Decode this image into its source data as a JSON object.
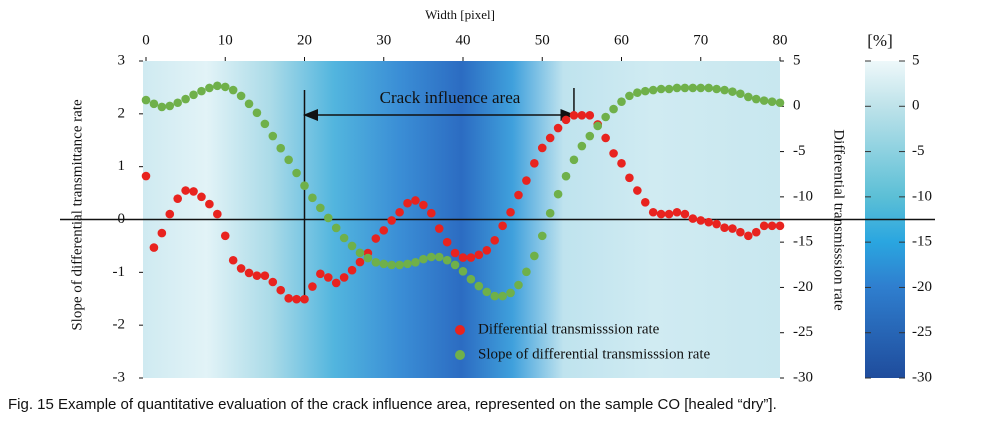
{
  "chart_data": {
    "type": "scatter",
    "x_label": "Width [pixel]",
    "y_label": "Slope of differential transmittance rate",
    "y2_label": "Differential transmisssion rate",
    "xlim": [
      0,
      80
    ],
    "xticks": [
      0,
      10,
      20,
      30,
      40,
      50,
      60,
      70,
      80
    ],
    "ylim": [
      -3,
      3
    ],
    "yticks": [
      -3,
      -2,
      -1,
      0,
      1,
      2,
      3
    ],
    "y2lim": [
      -30,
      5
    ],
    "y2ticks": [
      -30,
      -25,
      -20,
      -15,
      -10,
      -5,
      0,
      5
    ],
    "colorbar": {
      "label": "[%]",
      "lim": [
        -30,
        5
      ],
      "ticks": [
        -30,
        -25,
        -20,
        -15,
        -10,
        -5,
        0,
        5
      ]
    },
    "annotation": {
      "text": "Crack influence area",
      "span": [
        20,
        54
      ]
    },
    "x": [
      0,
      1,
      2,
      3,
      4,
      5,
      6,
      7,
      8,
      9,
      10,
      11,
      12,
      13,
      14,
      15,
      16,
      17,
      18,
      19,
      20,
      21,
      22,
      23,
      24,
      25,
      26,
      27,
      28,
      29,
      30,
      31,
      32,
      33,
      34,
      35,
      36,
      37,
      38,
      39,
      40,
      41,
      42,
      43,
      44,
      45,
      46,
      47,
      48,
      49,
      50,
      51,
      52,
      53,
      54,
      55,
      56,
      57,
      58,
      59,
      60,
      61,
      62,
      63,
      64,
      65,
      66,
      67,
      68,
      69,
      70,
      71,
      72,
      73,
      74,
      75,
      76,
      77,
      78,
      79,
      80
    ],
    "series": [
      {
        "name": "Differential transmisssion rate",
        "color": "#e8231f",
        "axis": "y2",
        "values": [
          -7.7,
          -15.6,
          -14.0,
          -11.9,
          -10.2,
          -9.3,
          -9.4,
          -10.0,
          -10.8,
          -11.9,
          -14.3,
          -17.0,
          -17.9,
          -18.4,
          -18.7,
          -18.7,
          -19.4,
          -20.3,
          -21.2,
          -21.3,
          -21.3,
          -19.9,
          -18.5,
          -18.9,
          -19.5,
          -18.9,
          -18.1,
          -17.2,
          -16.2,
          -14.6,
          -13.7,
          -12.6,
          -11.7,
          -10.7,
          -10.4,
          -10.9,
          -11.8,
          -13.5,
          -15.0,
          -16.2,
          -16.7,
          -16.7,
          -16.4,
          -15.9,
          -14.8,
          -13.2,
          -11.7,
          -9.8,
          -8.2,
          -6.3,
          -4.6,
          -3.5,
          -2.4,
          -1.5,
          -1.0,
          -1.0,
          -1.0,
          -2.0,
          -3.5,
          -5.2,
          -6.3,
          -7.9,
          -9.3,
          -10.6,
          -11.7,
          -11.9,
          -11.9,
          -11.7,
          -11.9,
          -12.4,
          -12.6,
          -12.8,
          -13.0,
          -13.4,
          -13.5,
          -13.9,
          -14.3,
          -13.9,
          -13.2,
          -13.2,
          -13.2
        ]
      },
      {
        "name": "Slope of differential transmisssion rate",
        "color": "#6fb04a",
        "axis": "y",
        "values": [
          2.26,
          2.19,
          2.13,
          2.15,
          2.21,
          2.28,
          2.36,
          2.43,
          2.49,
          2.53,
          2.51,
          2.45,
          2.34,
          2.19,
          2.02,
          1.81,
          1.58,
          1.35,
          1.13,
          0.88,
          0.64,
          0.41,
          0.22,
          0.03,
          -0.16,
          -0.35,
          -0.5,
          -0.63,
          -0.73,
          -0.81,
          -0.84,
          -0.86,
          -0.86,
          -0.84,
          -0.81,
          -0.75,
          -0.71,
          -0.71,
          -0.77,
          -0.86,
          -0.98,
          -1.13,
          -1.26,
          -1.37,
          -1.45,
          -1.45,
          -1.39,
          -1.24,
          -0.99,
          -0.69,
          -0.31,
          0.12,
          0.48,
          0.82,
          1.13,
          1.39,
          1.58,
          1.77,
          1.94,
          2.09,
          2.23,
          2.34,
          2.4,
          2.43,
          2.45,
          2.47,
          2.47,
          2.49,
          2.49,
          2.49,
          2.49,
          2.49,
          2.47,
          2.45,
          2.42,
          2.38,
          2.32,
          2.28,
          2.25,
          2.23,
          2.21
        ]
      }
    ]
  },
  "caption": "Fig. 15 Example of quantitative evaluation of the crack influence area, represented on the sample CO [healed “dry”]."
}
